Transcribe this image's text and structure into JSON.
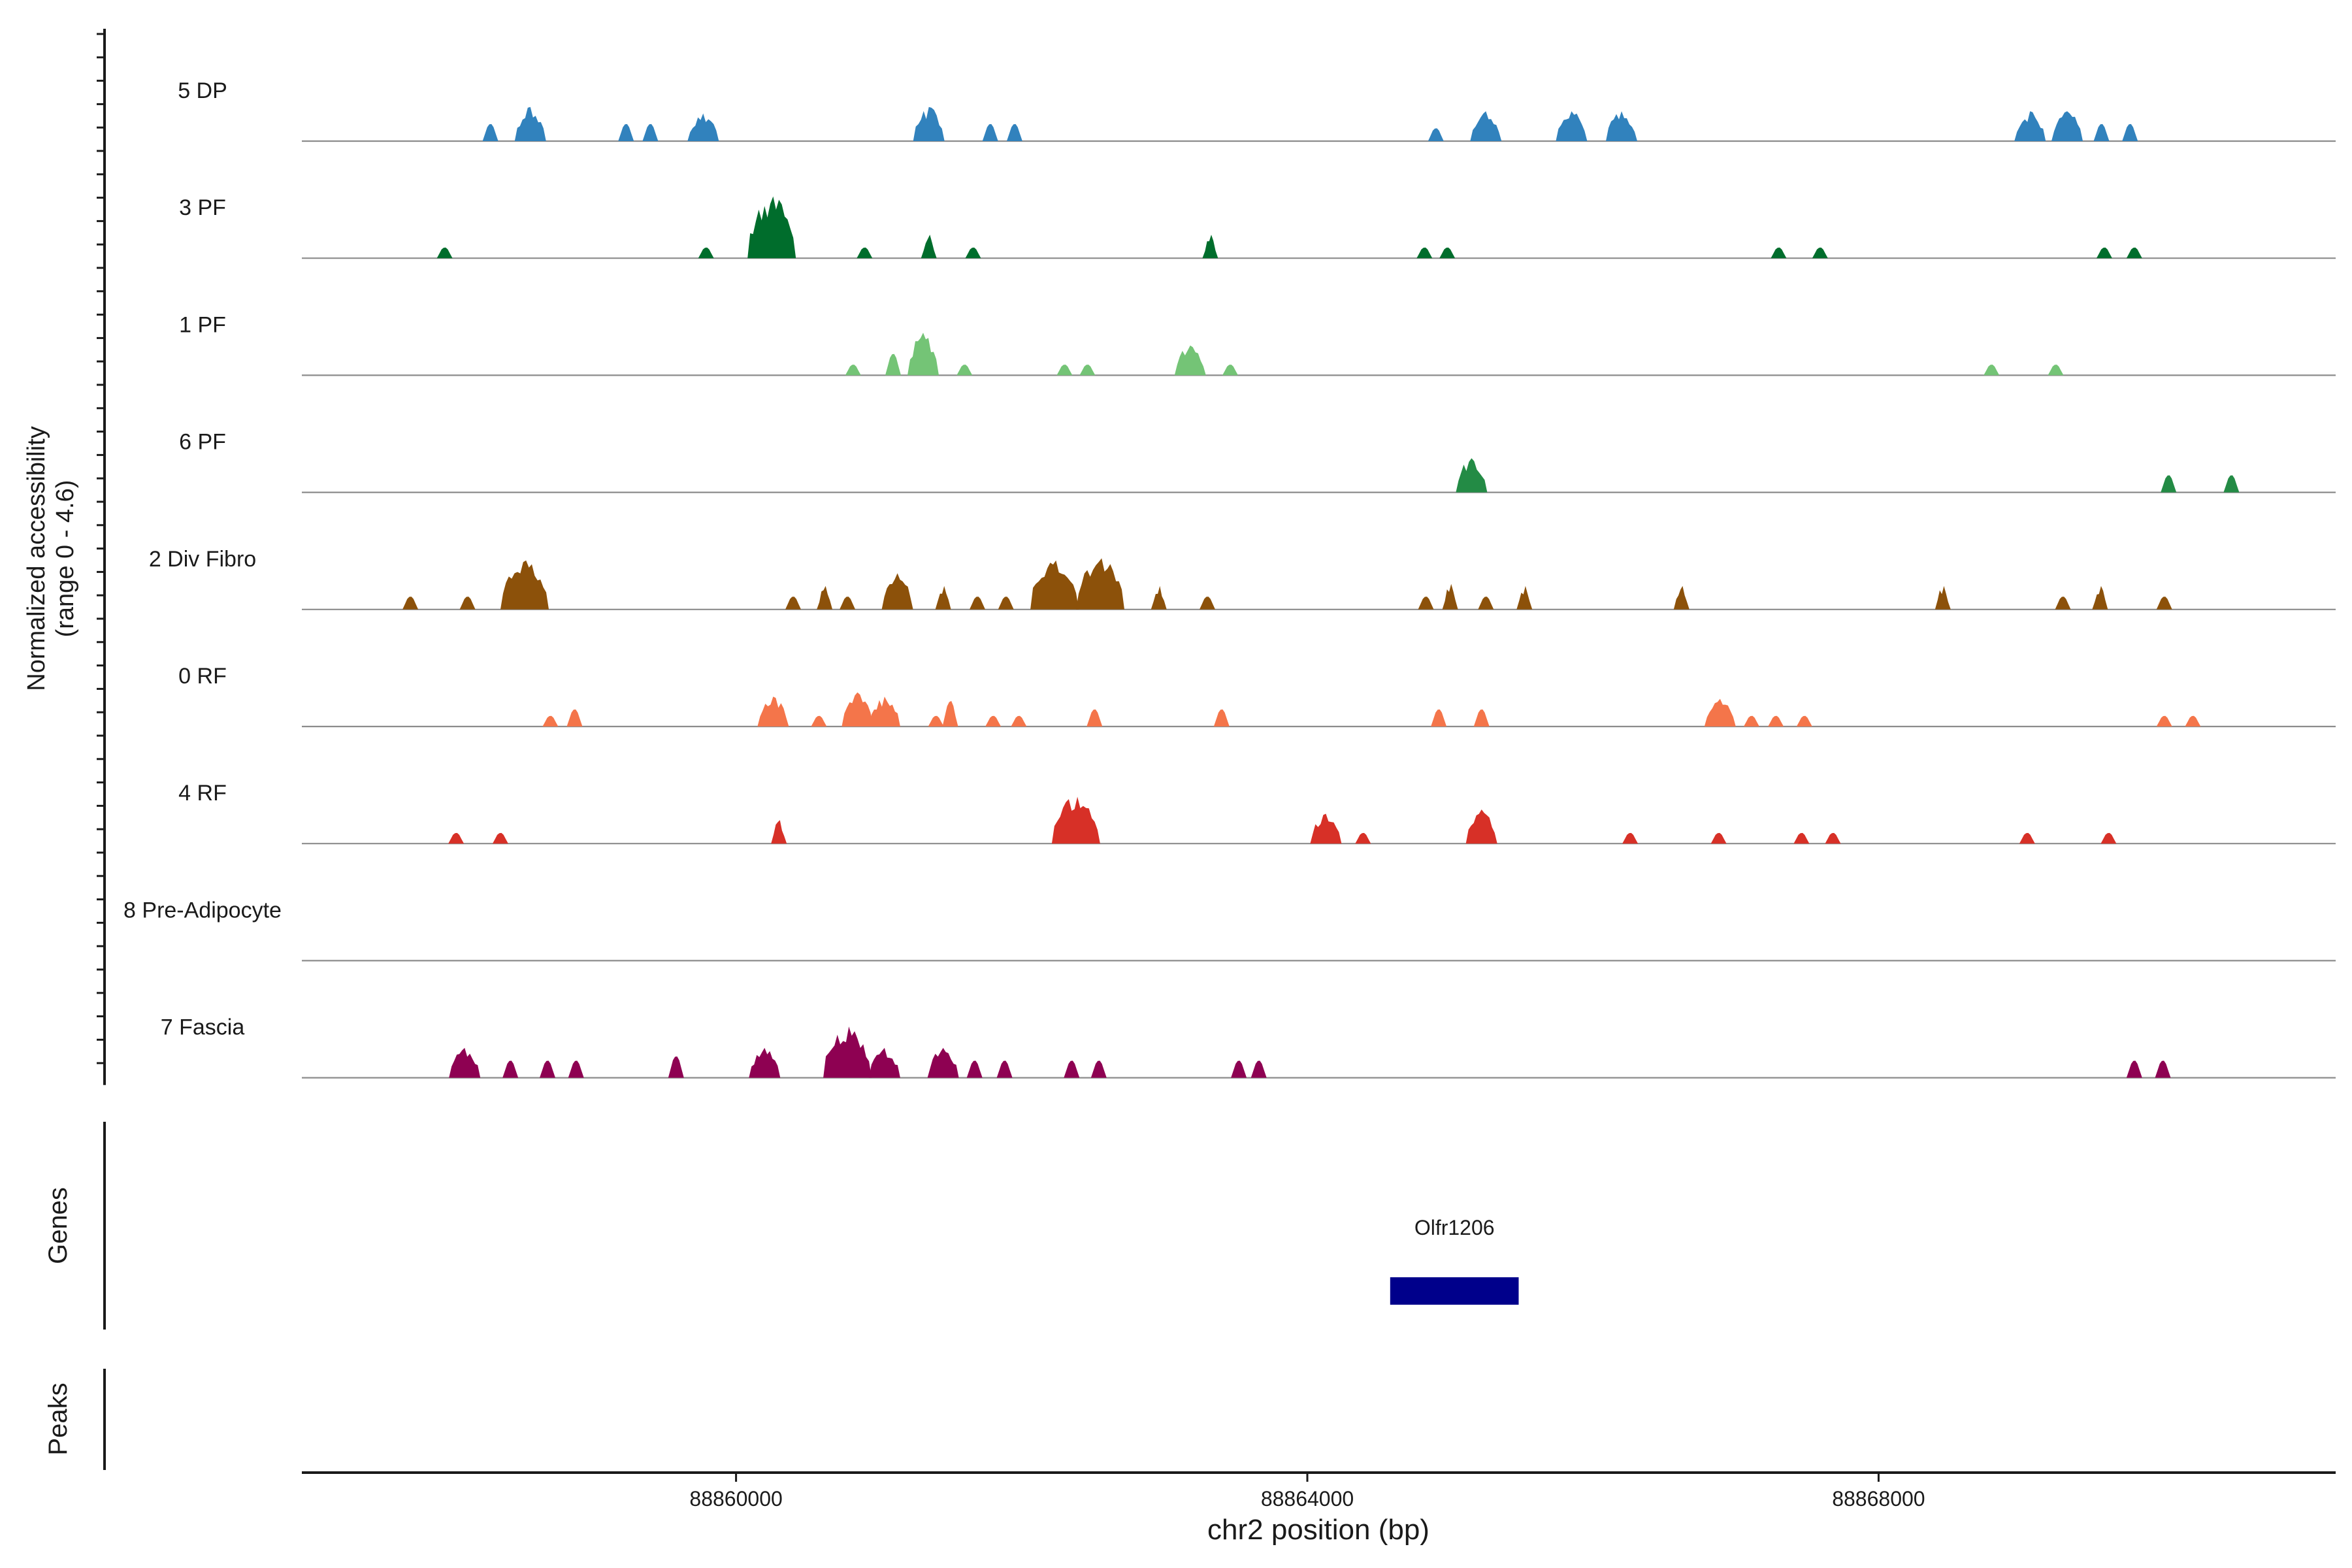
{
  "chart_data": {
    "type": "area",
    "title": "",
    "ylabel": "Normalized accessibility",
    "ylabel_range": "(range 0 - 4.6)",
    "y_range": [
      0,
      4.6
    ],
    "xlabel": "chr2 position (bp)",
    "xlim": [
      88856960,
      88871200
    ],
    "x_ticks": [
      88860000,
      88864000,
      88868000
    ],
    "x_tick_labels": [
      "88860000",
      "88864000",
      "88868000"
    ],
    "genes_label": "Genes",
    "peaks_label": "Peaks",
    "genes": [
      {
        "name": "Olfr1206",
        "start": 88864580,
        "end": 88865480,
        "color": "#00008B"
      }
    ],
    "tracks": [
      {
        "name": "5 DP",
        "color": "#3182BD",
        "peaks": [
          [
            88858280,
            0.8
          ],
          [
            88858560,
            1.6
          ],
          [
            88859230,
            0.8
          ],
          [
            88859400,
            0.8
          ],
          [
            88859770,
            1.3
          ],
          [
            88861350,
            1.6
          ],
          [
            88861780,
            0.8
          ],
          [
            88861950,
            0.8
          ],
          [
            88864900,
            0.6
          ],
          [
            88865250,
            1.4
          ],
          [
            88865850,
            1.4
          ],
          [
            88866200,
            1.4
          ],
          [
            88869060,
            1.4
          ],
          [
            88869320,
            1.4
          ],
          [
            88869560,
            0.8
          ],
          [
            88869760,
            0.8
          ]
        ]
      },
      {
        "name": "3 PF",
        "color": "#006D2C",
        "peaks": [
          [
            88857960,
            0.5
          ],
          [
            88859790,
            0.5
          ],
          [
            88860250,
            2.9
          ],
          [
            88860900,
            0.5
          ],
          [
            88861350,
            1.1
          ],
          [
            88861660,
            0.5
          ],
          [
            88863320,
            1.1
          ],
          [
            88864820,
            0.5
          ],
          [
            88864980,
            0.5
          ],
          [
            88867300,
            0.5
          ],
          [
            88867590,
            0.5
          ],
          [
            88869580,
            0.5
          ],
          [
            88869790,
            0.5
          ]
        ]
      },
      {
        "name": "1 PF",
        "color": "#74C476",
        "peaks": [
          [
            88860820,
            0.5
          ],
          [
            88861100,
            1.0
          ],
          [
            88861310,
            2.0
          ],
          [
            88861600,
            0.5
          ],
          [
            88862300,
            0.5
          ],
          [
            88862460,
            0.5
          ],
          [
            88863180,
            1.4
          ],
          [
            88863460,
            0.5
          ],
          [
            88868790,
            0.5
          ],
          [
            88869240,
            0.5
          ]
        ]
      },
      {
        "name": "6 PF",
        "color": "#238B45",
        "peaks": [
          [
            88865150,
            1.6
          ],
          [
            88870030,
            0.8
          ],
          [
            88870470,
            0.8
          ]
        ]
      },
      {
        "name": "2 Div Fibro",
        "color": "#8C510A",
        "peaks": [
          [
            88857720,
            0.6
          ],
          [
            88858120,
            0.6
          ],
          [
            88858520,
            2.3
          ],
          [
            88860400,
            0.6
          ],
          [
            88860620,
            1.1
          ],
          [
            88860780,
            0.6
          ],
          [
            88861130,
            1.7
          ],
          [
            88861450,
            1.1
          ],
          [
            88861690,
            0.6
          ],
          [
            88861890,
            0.6
          ],
          [
            88862230,
            2.3
          ],
          [
            88862550,
            2.4
          ],
          [
            88862960,
            1.1
          ],
          [
            88863300,
            0.6
          ],
          [
            88864830,
            0.6
          ],
          [
            88865000,
            1.2
          ],
          [
            88865250,
            0.6
          ],
          [
            88865520,
            1.1
          ],
          [
            88866620,
            1.1
          ],
          [
            88868450,
            1.1
          ],
          [
            88869290,
            0.6
          ],
          [
            88869550,
            1.1
          ],
          [
            88870000,
            0.6
          ]
        ]
      },
      {
        "name": "0 RF",
        "color": "#F4754A",
        "peaks": [
          [
            88858700,
            0.5
          ],
          [
            88858870,
            0.8
          ],
          [
            88860260,
            1.4
          ],
          [
            88860580,
            0.5
          ],
          [
            88860850,
            1.6
          ],
          [
            88861040,
            1.4
          ],
          [
            88861400,
            0.5
          ],
          [
            88861500,
            1.2
          ],
          [
            88861800,
            0.5
          ],
          [
            88861980,
            0.5
          ],
          [
            88862510,
            0.8
          ],
          [
            88863400,
            0.8
          ],
          [
            88864920,
            0.8
          ],
          [
            88865220,
            0.8
          ],
          [
            88866890,
            1.3
          ],
          [
            88867110,
            0.5
          ],
          [
            88867280,
            0.5
          ],
          [
            88867480,
            0.5
          ],
          [
            88870000,
            0.5
          ],
          [
            88870200,
            0.5
          ]
        ]
      },
      {
        "name": "4 RF",
        "color": "#D73027",
        "peaks": [
          [
            88858040,
            0.5
          ],
          [
            88858350,
            0.5
          ],
          [
            88860300,
            1.1
          ],
          [
            88862380,
            2.2
          ],
          [
            88864130,
            1.4
          ],
          [
            88864390,
            0.5
          ],
          [
            88865220,
            1.6
          ],
          [
            88866260,
            0.5
          ],
          [
            88866880,
            0.5
          ],
          [
            88867460,
            0.5
          ],
          [
            88867680,
            0.5
          ],
          [
            88869040,
            0.5
          ],
          [
            88869610,
            0.5
          ]
        ]
      },
      {
        "name": "8 Pre-Adipocyte",
        "color": "#6A51A3",
        "peaks": []
      },
      {
        "name": "7 Fascia",
        "color": "#8E0152",
        "peaks": [
          [
            88858100,
            1.4
          ],
          [
            88858420,
            0.8
          ],
          [
            88858680,
            0.8
          ],
          [
            88858880,
            0.8
          ],
          [
            88859580,
            1.0
          ],
          [
            88860200,
            1.4
          ],
          [
            88860780,
            2.4
          ],
          [
            88861040,
            1.4
          ],
          [
            88861450,
            1.4
          ],
          [
            88861670,
            0.8
          ],
          [
            88861880,
            0.8
          ],
          [
            88862350,
            0.8
          ],
          [
            88862540,
            0.8
          ],
          [
            88863520,
            0.8
          ],
          [
            88863660,
            0.8
          ],
          [
            88869790,
            0.8
          ],
          [
            88869990,
            0.8
          ]
        ]
      }
    ]
  }
}
